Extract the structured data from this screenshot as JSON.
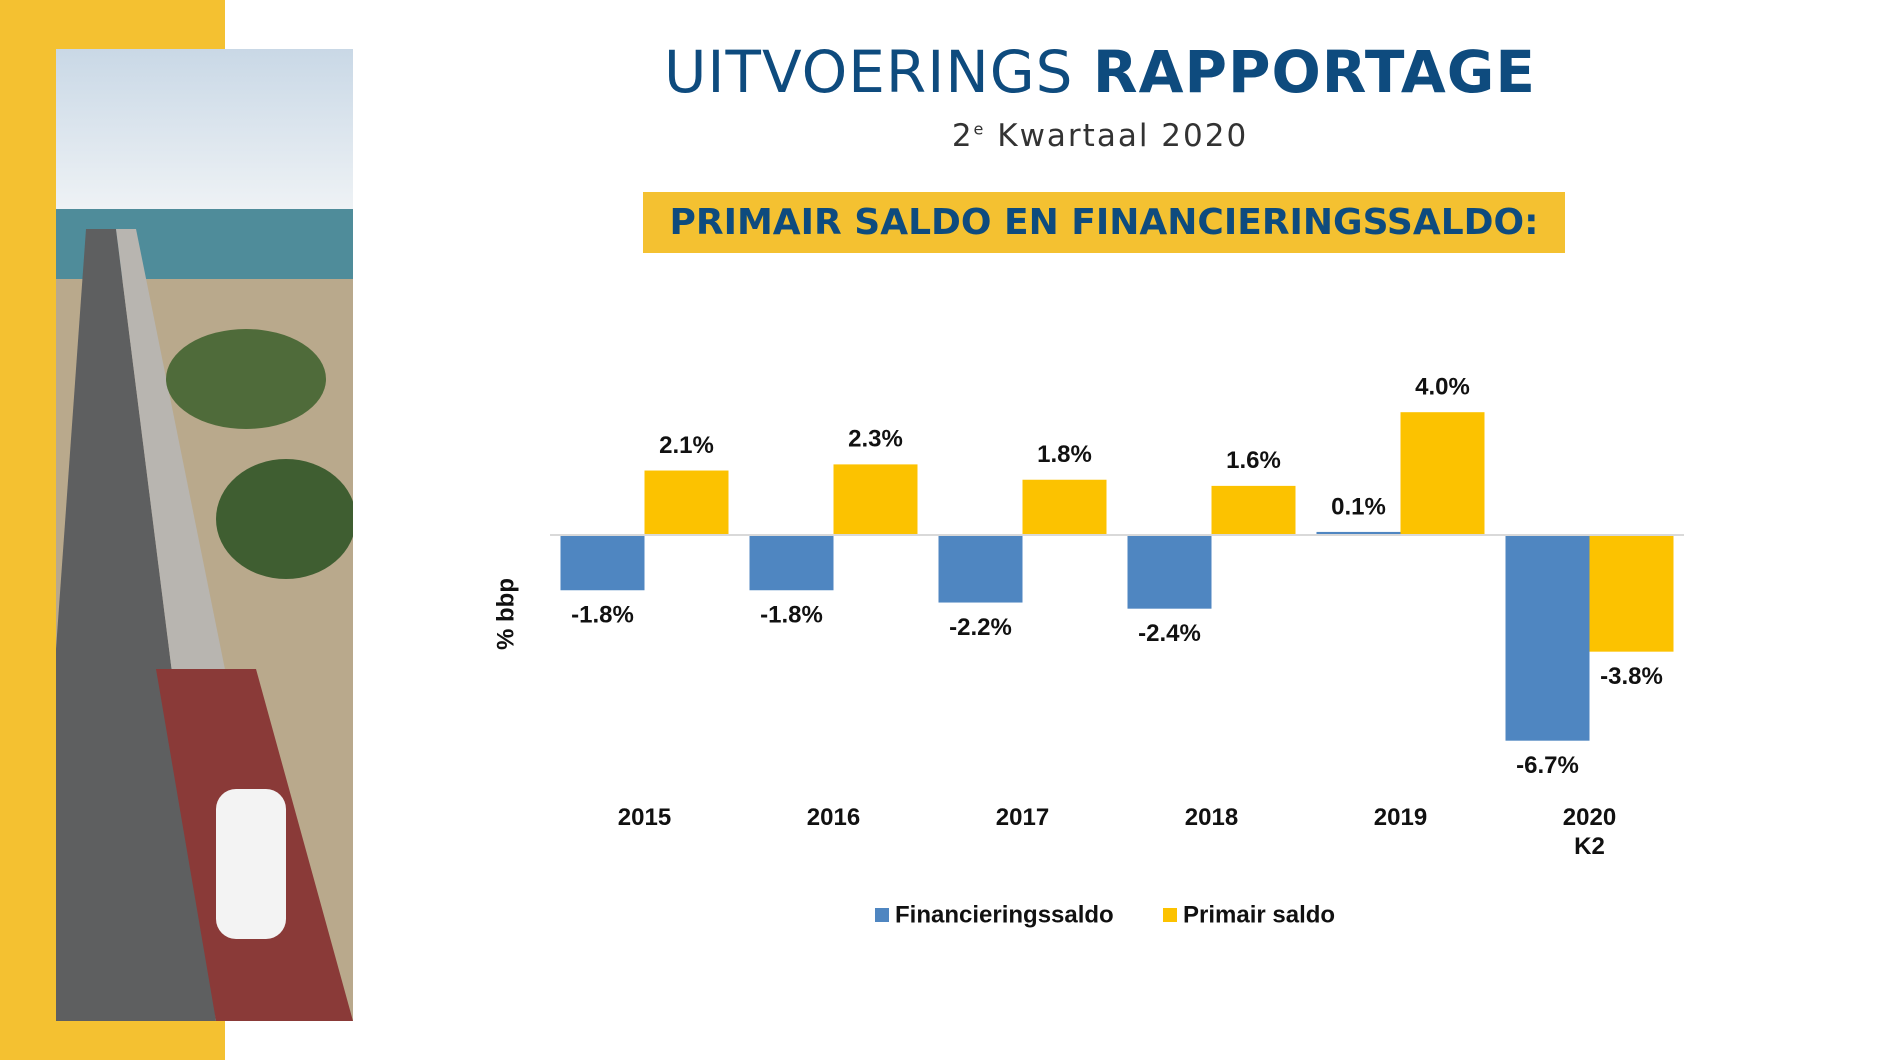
{
  "header": {
    "title_light": "UITVOERINGS",
    "title_bold": "RAPPORTAGE",
    "subtitle": {
      "number": "2",
      "superscript": "e",
      "text": "Kwartaal 2020"
    }
  },
  "banner": "PRIMAIR SALDO EN FINANCIERINGSSALDO:",
  "chart_data": {
    "type": "bar",
    "y_label": "% bbp",
    "categories": [
      "2015",
      "2016",
      "2017",
      "2018",
      "2019",
      "2020\nK2"
    ],
    "series": [
      {
        "name": "Financieringssaldo",
        "color": "#4f86c1",
        "values": [
          -1.8,
          -1.8,
          -2.2,
          -2.4,
          0.1,
          -6.7
        ],
        "value_labels": [
          "-1.8%",
          "-1.8%",
          "-2.2%",
          "-2.4%",
          "0.1%",
          "-6.7%"
        ]
      },
      {
        "name": "Primair saldo",
        "color": "#fcc200",
        "values": [
          2.1,
          2.3,
          1.8,
          1.6,
          4.0,
          -3.8
        ],
        "value_labels": [
          "2.1%",
          "2.3%",
          "1.8%",
          "1.6%",
          "4.0%",
          "-3.8%"
        ]
      }
    ],
    "ylim": [
      -8,
      5
    ]
  }
}
